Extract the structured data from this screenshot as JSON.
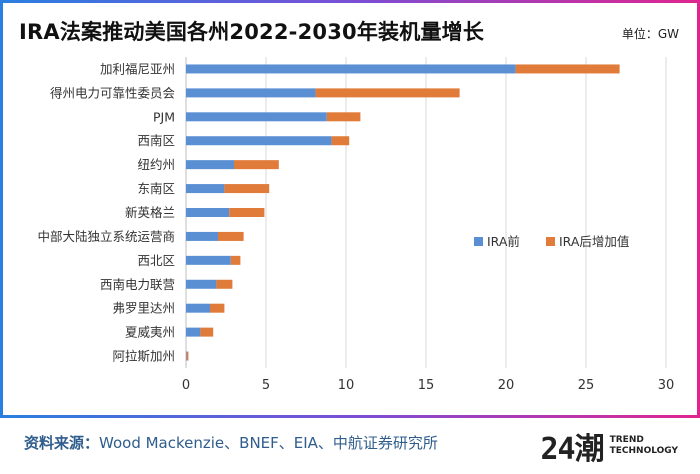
{
  "title": "IRA法案推动美国各州2022-2030年装机量增长",
  "unit_label": "单位：GW",
  "footer": {
    "source_label": "资料来源：",
    "source_text": "Wood Mackenzie、BNEF、EIA、中航证券研究所",
    "brand_logo": "24潮",
    "brand_line1": "TREND",
    "brand_line2": "TECHNOLOGY"
  },
  "colors": {
    "before": "#5b8fd4",
    "after": "#e07b39",
    "grid": "#d9d9d9",
    "axis": "#bfbfbf"
  },
  "chart_data": {
    "type": "bar",
    "orientation": "horizontal",
    "stacked": true,
    "title": "IRA法案推动美国各州2022-2030年装机量增长",
    "xlabel": "",
    "ylabel": "",
    "xlim": [
      0,
      30
    ],
    "xticks": [
      0,
      5,
      10,
      15,
      20,
      25,
      30
    ],
    "grid": true,
    "legend_position": "center-right",
    "categories": [
      "加利福尼亚州",
      "得州电力可靠性委员会",
      "PJM",
      "西南区",
      "纽约州",
      "东南区",
      "新英格兰",
      "中部大陆独立系统运营商",
      "西北区",
      "西南电力联营",
      "弗罗里达州",
      "夏威夷州",
      "阿拉斯加州"
    ],
    "series": [
      {
        "name": "IRA前",
        "values": [
          20.6,
          8.1,
          8.8,
          9.1,
          3.0,
          2.4,
          2.7,
          2.0,
          2.8,
          1.9,
          1.5,
          0.9,
          0.05
        ]
      },
      {
        "name": "IRA后增加值",
        "values": [
          6.5,
          9.0,
          2.1,
          1.1,
          2.8,
          2.8,
          2.2,
          1.6,
          0.6,
          1.0,
          0.9,
          0.8,
          0.1
        ]
      }
    ]
  }
}
